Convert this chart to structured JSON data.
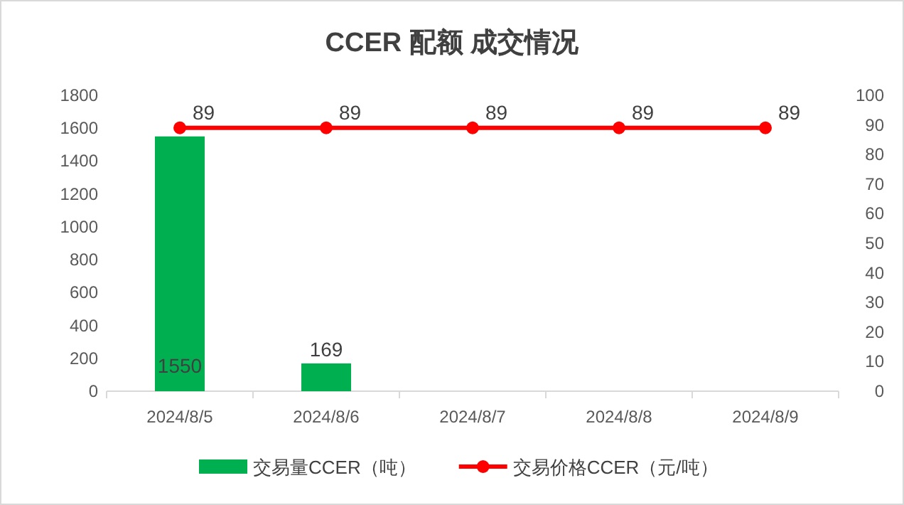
{
  "chart_data": {
    "type": "bar",
    "title": "CCER 配额 成交情况",
    "categories": [
      "2024/8/5",
      "2024/8/6",
      "2024/8/7",
      "2024/8/8",
      "2024/8/9"
    ],
    "series": [
      {
        "name": "交易量CCER（吨）",
        "color": "#00b050",
        "values": [
          1550,
          169,
          null,
          null,
          null
        ]
      },
      {
        "name": "交易价格CCER（元/吨）",
        "type": "line",
        "axis": "y2",
        "color": "#ff0000",
        "marker": "circle",
        "values": [
          89,
          89,
          89,
          89,
          89
        ]
      }
    ],
    "ylim": [
      0,
      1800
    ],
    "yticks": [
      0,
      200,
      400,
      600,
      800,
      1000,
      1200,
      1400,
      1600,
      1800
    ],
    "y2lim": [
      0,
      100
    ],
    "y2ticks": [
      0,
      10,
      20,
      30,
      40,
      50,
      60,
      70,
      80,
      90,
      100
    ],
    "data_labels": true,
    "legend": "bottom",
    "grid": false
  }
}
